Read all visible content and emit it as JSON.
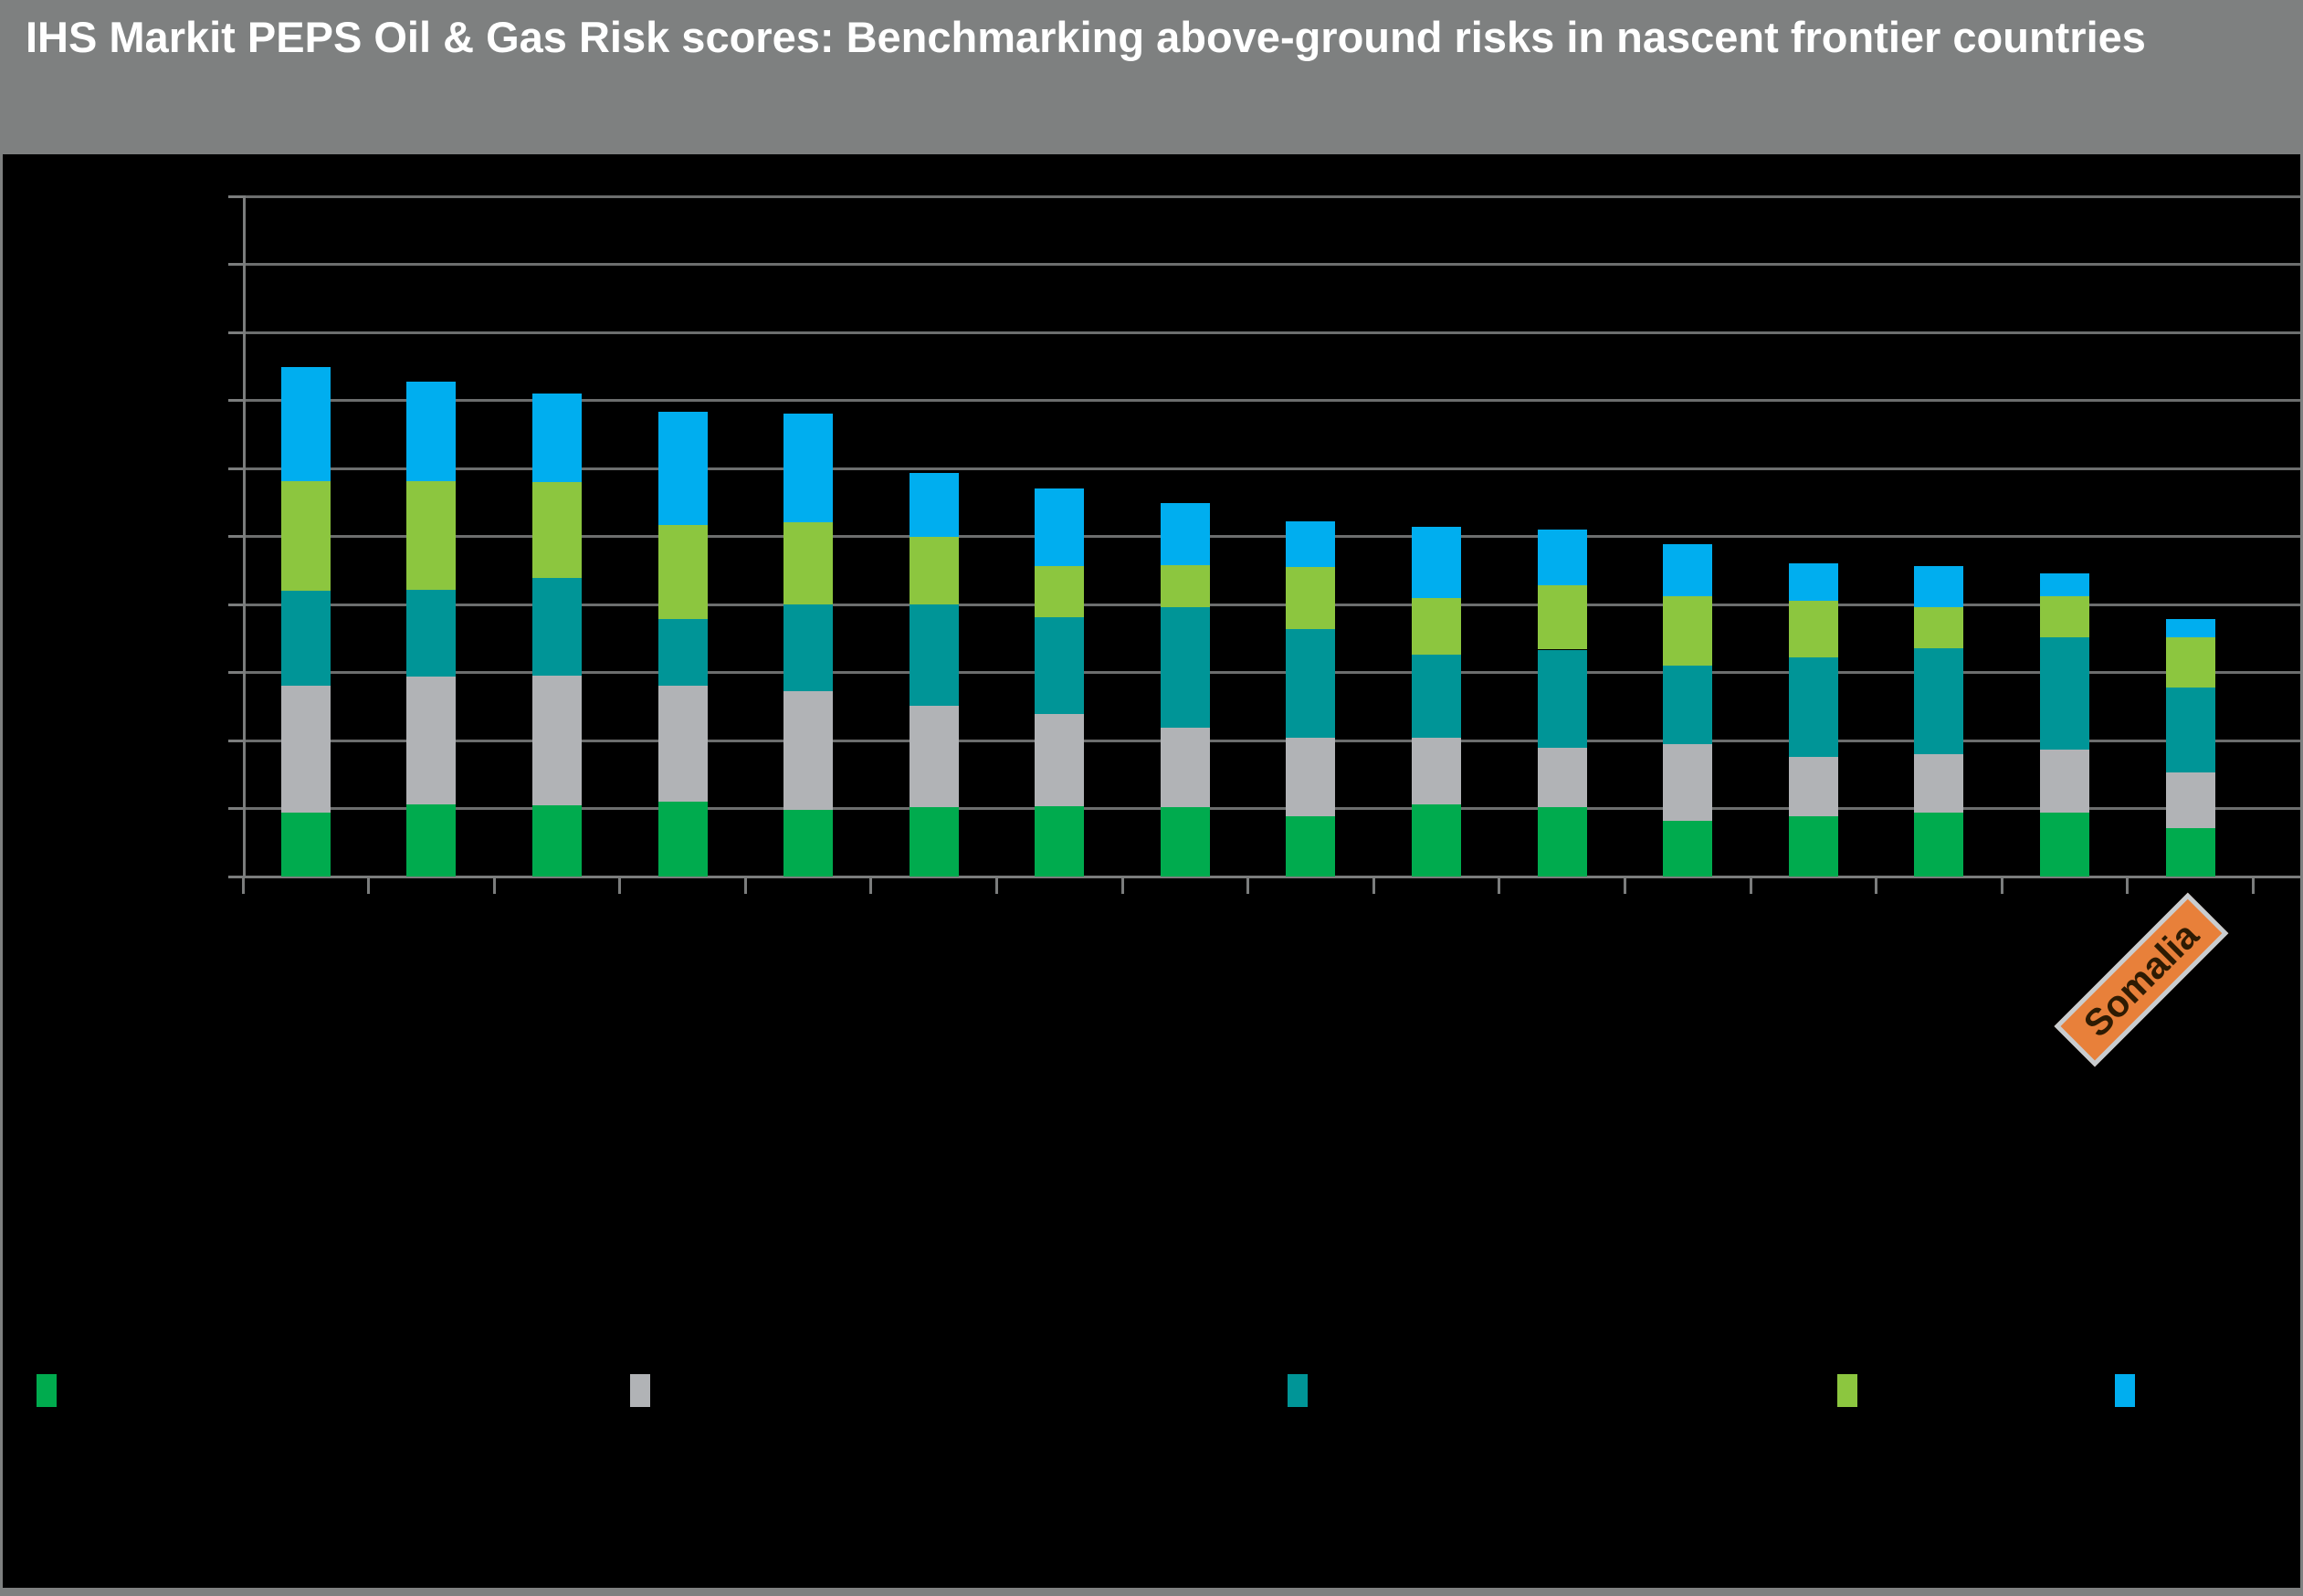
{
  "header": {
    "title": "IHS Markit PEPS Oil & Gas Risk scores: Benchmarking above-ground risks in nascent frontier countries",
    "bg_color": "#7e8080",
    "text_color": "#ffffff"
  },
  "frame": {
    "border_color": "#7e8080"
  },
  "chart_data": {
    "type": "bar",
    "stacked": true,
    "orientation": "vertical",
    "bar_count": 16,
    "categories": [
      "",
      "",
      "",
      "",
      "",
      "",
      "",
      "",
      "",
      "",
      "",
      "",
      "",
      "",
      "",
      "Somalia"
    ],
    "series": [
      {
        "name": "green-segment",
        "color": "#00ab4e",
        "values": [
          9.5,
          10.6,
          10.5,
          11.0,
          9.9,
          10.2,
          10.4,
          10.3,
          8.9,
          10.7,
          10.2,
          8.2,
          8.9,
          9.4,
          9.5,
          7.2
        ]
      },
      {
        "name": "gray-segment",
        "color": "#b1b3b6",
        "values": [
          18.6,
          18.8,
          19.1,
          17.1,
          17.4,
          14.9,
          13.5,
          11.6,
          11.6,
          9.8,
          8.8,
          11.3,
          8.7,
          8.7,
          9.2,
          8.2
        ]
      },
      {
        "name": "teal-segment",
        "color": "#009597",
        "values": [
          13.9,
          12.8,
          14.3,
          9.8,
          12.8,
          15.0,
          14.3,
          17.8,
          15.9,
          12.2,
          14.4,
          11.5,
          14.6,
          15.5,
          16.5,
          12.4
        ]
      },
      {
        "name": "light-green-segment",
        "color": "#8cc63f",
        "values": [
          16.2,
          15.9,
          14.1,
          13.8,
          12.0,
          9.9,
          7.5,
          6.1,
          9.2,
          8.3,
          9.4,
          10.3,
          8.4,
          6.0,
          6.1,
          7.4
        ]
      },
      {
        "name": "blue-segment",
        "color": "#00aeef",
        "values": [
          16.7,
          14.7,
          13.0,
          16.6,
          16.0,
          9.3,
          11.4,
          9.1,
          6.6,
          10.5,
          8.3,
          7.6,
          5.5,
          6.1,
          3.3,
          2.7
        ]
      }
    ],
    "bar_totals": [
      74.9,
      72.8,
      71.0,
      68.3,
      68.1,
      59.3,
      57.1,
      54.9,
      52.2,
      51.5,
      51.1,
      48.9,
      46.1,
      45.7,
      44.6,
      37.9
    ],
    "ylim": [
      0,
      100
    ],
    "y_tick_interval": 10,
    "gridlines_visible": true,
    "gridline_color": "#6c6e6e",
    "axis_color": "#7b7d7d",
    "axis_labels_visible": false,
    "annotation": {
      "text": "Somalia",
      "bar_index": 15,
      "bg_color": "#e8803a",
      "border_color": "#c9cdd0",
      "text_color": "#2e1b03",
      "rotation_deg": -45
    }
  },
  "legend": {
    "position": "bottom",
    "labels_visible": false,
    "items": [
      {
        "label": "",
        "color": "#00ab4e"
      },
      {
        "label": "",
        "color": "#b1b3b6"
      },
      {
        "label": "",
        "color": "#009597"
      },
      {
        "label": "",
        "color": "#8cc63f"
      },
      {
        "label": "",
        "color": "#00aeef"
      }
    ]
  }
}
